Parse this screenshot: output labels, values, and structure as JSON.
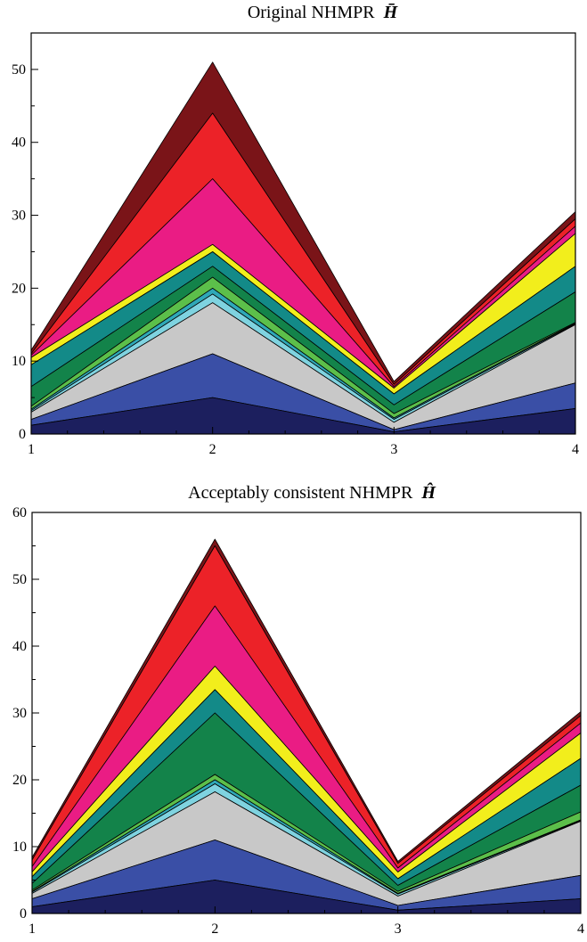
{
  "chart_data": [
    {
      "type": "area",
      "title": "Original NHMPR",
      "title_symbol": "H̄̄",
      "x": [
        1,
        2,
        3,
        4
      ],
      "xticks": [
        1,
        2,
        3,
        4
      ],
      "ylim": [
        0,
        55
      ],
      "yticks": [
        0,
        10,
        20,
        30,
        40,
        50
      ],
      "grid": false,
      "legend": "none",
      "cumulative_series": [
        {
          "color": "#1c1f5e",
          "values": [
            1.2,
            5.0,
            0.3,
            3.5
          ]
        },
        {
          "color": "#3a4fa6",
          "values": [
            2.0,
            11.0,
            0.6,
            7.0
          ]
        },
        {
          "color": "#c8c8c8",
          "values": [
            3.0,
            18.0,
            1.6,
            15.0
          ]
        },
        {
          "color": "#7fd3e0",
          "values": [
            3.2,
            19.2,
            2.0,
            15.1
          ]
        },
        {
          "color": "#2fa8b8",
          "values": [
            3.4,
            20.0,
            2.2,
            15.2
          ]
        },
        {
          "color": "#5cbf4a",
          "values": [
            3.8,
            21.5,
            2.8,
            15.3
          ]
        },
        {
          "color": "#13834a",
          "values": [
            6.5,
            23.0,
            4.0,
            19.5
          ]
        },
        {
          "color": "#138a88",
          "values": [
            9.5,
            25.0,
            5.5,
            23.0
          ]
        },
        {
          "color": "#f2ee1c",
          "values": [
            10.5,
            26.0,
            6.3,
            27.5
          ]
        },
        {
          "color": "#ea1c84",
          "values": [
            10.8,
            35.0,
            6.5,
            28.5
          ]
        },
        {
          "color": "#ec2228",
          "values": [
            11.0,
            44.0,
            6.8,
            29.5
          ]
        },
        {
          "color": "#7a1418",
          "values": [
            11.5,
            51.0,
            7.2,
            30.5
          ]
        }
      ]
    },
    {
      "type": "area",
      "title": "Acceptably consistent NHMPR",
      "title_symbol": "Ĥ",
      "x": [
        1,
        2,
        3,
        4
      ],
      "xticks": [
        1,
        2,
        3,
        4
      ],
      "ylim": [
        0,
        60
      ],
      "yticks": [
        0,
        10,
        20,
        30,
        40,
        50,
        60
      ],
      "grid": false,
      "legend": "none",
      "cumulative_series": [
        {
          "color": "#1c1f5e",
          "values": [
            1.0,
            5.0,
            0.5,
            2.2
          ]
        },
        {
          "color": "#3a4fa6",
          "values": [
            2.2,
            11.0,
            1.2,
            5.7
          ]
        },
        {
          "color": "#c8c8c8",
          "values": [
            3.0,
            18.2,
            2.6,
            13.8
          ]
        },
        {
          "color": "#7fd3e0",
          "values": [
            3.2,
            19.4,
            2.9,
            13.9
          ]
        },
        {
          "color": "#2fa8b8",
          "values": [
            3.3,
            20.0,
            3.0,
            14.0
          ]
        },
        {
          "color": "#5cbf4a",
          "values": [
            3.5,
            20.8,
            3.3,
            15.2
          ]
        },
        {
          "color": "#13834a",
          "values": [
            4.5,
            30.0,
            4.2,
            19.2
          ]
        },
        {
          "color": "#138a88",
          "values": [
            5.5,
            33.5,
            5.2,
            23.2
          ]
        },
        {
          "color": "#f2ee1c",
          "values": [
            6.2,
            37.0,
            6.2,
            27.0
          ]
        },
        {
          "color": "#ea1c84",
          "values": [
            7.0,
            46.0,
            6.8,
            28.5
          ]
        },
        {
          "color": "#ec2228",
          "values": [
            8.0,
            55.0,
            7.5,
            29.6
          ]
        },
        {
          "color": "#7a1418",
          "values": [
            8.4,
            56.0,
            7.8,
            30.2
          ]
        }
      ]
    }
  ]
}
